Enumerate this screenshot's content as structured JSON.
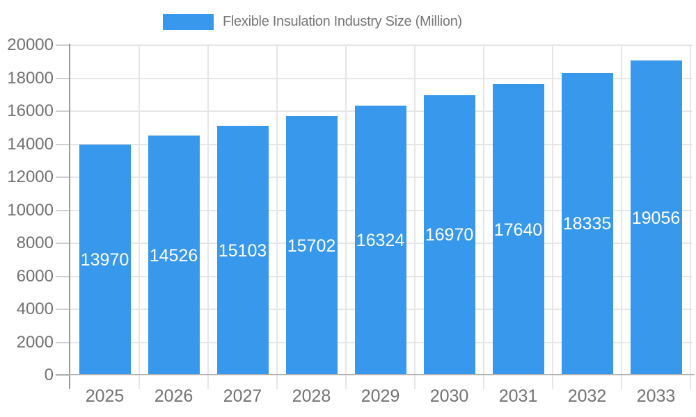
{
  "chart_data": {
    "type": "bar",
    "title": "Flexible Insulation Industry Size (Million)",
    "legend": {
      "position": "top",
      "entries": [
        {
          "label": "Flexible Insulation Industry Size (Million)",
          "color": "#3898EC"
        }
      ]
    },
    "categories": [
      "2025",
      "2026",
      "2027",
      "2028",
      "2029",
      "2030",
      "2031",
      "2032",
      "2033"
    ],
    "series": [
      {
        "name": "Flexible Insulation Industry Size (Million)",
        "values": [
          13970,
          14526,
          15103,
          15702,
          16324,
          16970,
          17640,
          18335,
          19056
        ]
      }
    ],
    "value_labels": [
      "13970",
      "14526",
      "15103",
      "15702",
      "16324",
      "16970",
      "17640",
      "18335",
      "19056"
    ],
    "xlabel": "",
    "ylabel": "",
    "ylim": [
      0,
      20000
    ],
    "ytick_interval": 2000,
    "ytick_labels": [
      "0",
      "2000",
      "4000",
      "6000",
      "8000",
      "10000",
      "12000",
      "14000",
      "16000",
      "18000",
      "20000"
    ],
    "grid": true,
    "bar_labels_inside": true,
    "colors": {
      "bar": "#3898EC",
      "bar_label_text": "#FFFFFF",
      "axis_text": "#737373",
      "legend_text": "#757575",
      "grid_line": "#E6E6E6",
      "axis_line": "#9A9A9A",
      "baseline": "#B3B3B3",
      "tick": "#CFCFCF",
      "background": "#FFFFFF"
    }
  }
}
